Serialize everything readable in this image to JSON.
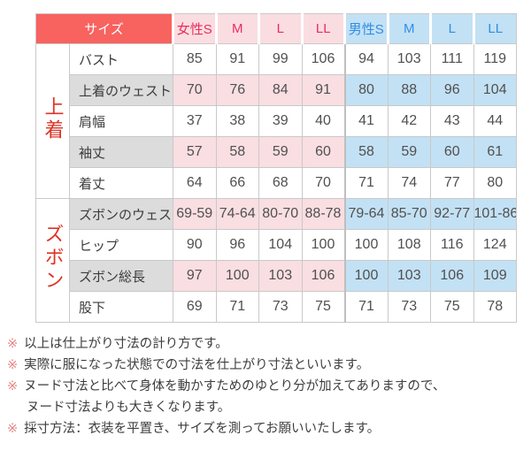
{
  "colors": {
    "header_red_bg": "#f8625f",
    "header_red_text": "#ffffff",
    "female_header_bg": "#fadde1",
    "female_text": "#ea2d5e",
    "male_header_bg": "#c3e1f4",
    "male_text": "#2e8ee6",
    "shaded_label_bg": "#dcdcdc",
    "shaded_female_bg": "#f9dee2",
    "shaded_male_bg": "#c3e1f4",
    "group_label_text": "#dd3327",
    "border": "#c9c9c9",
    "body_text": "#505050",
    "label_text": "#3c3c3c",
    "footnote_marker": "#e98585",
    "footnote_text": "#3d3d3d"
  },
  "table": {
    "header": {
      "size_label": "サイズ",
      "female": [
        "女性S",
        "M",
        "L",
        "LL"
      ],
      "male": [
        "男性S",
        "M",
        "L",
        "LL"
      ]
    },
    "groups": [
      {
        "id": "tops",
        "label": "上着",
        "rows": [
          {
            "label": "バスト",
            "shaded": false,
            "female": [
              "85",
              "91",
              "99",
              "106"
            ],
            "male": [
              "94",
              "103",
              "111",
              "119"
            ]
          },
          {
            "label": "上着のウェスト",
            "shaded": true,
            "female": [
              "70",
              "76",
              "84",
              "91"
            ],
            "male": [
              "80",
              "88",
              "96",
              "104"
            ]
          },
          {
            "label": "肩幅",
            "shaded": false,
            "female": [
              "37",
              "38",
              "39",
              "40"
            ],
            "male": [
              "41",
              "42",
              "43",
              "44"
            ]
          },
          {
            "label": "袖丈",
            "shaded": true,
            "female": [
              "57",
              "58",
              "59",
              "60"
            ],
            "male": [
              "58",
              "59",
              "60",
              "61"
            ]
          },
          {
            "label": "着丈",
            "shaded": false,
            "female": [
              "64",
              "66",
              "68",
              "70"
            ],
            "male": [
              "71",
              "74",
              "77",
              "80"
            ]
          }
        ]
      },
      {
        "id": "pants",
        "label": "ズボン",
        "rows": [
          {
            "label": "ズボンのウェスト",
            "shaded": true,
            "female": [
              "69-59",
              "74-64",
              "80-70",
              "88-78"
            ],
            "male": [
              "79-64",
              "85-70",
              "92-77",
              "101-86"
            ]
          },
          {
            "label": "ヒップ",
            "shaded": false,
            "female": [
              "90",
              "96",
              "104",
              "100"
            ],
            "male": [
              "100",
              "108",
              "116",
              "124"
            ]
          },
          {
            "label": "ズボン総長",
            "shaded": true,
            "female": [
              "97",
              "100",
              "103",
              "106"
            ],
            "male": [
              "100",
              "103",
              "106",
              "109"
            ]
          },
          {
            "label": "股下",
            "shaded": false,
            "female": [
              "69",
              "71",
              "73",
              "75"
            ],
            "male": [
              "71",
              "73",
              "75",
              "78"
            ]
          }
        ]
      }
    ]
  },
  "footnote_marker_char": "※",
  "footnotes": [
    {
      "marker": true,
      "text": "以上は仕上がり寸法の計り方です。"
    },
    {
      "marker": true,
      "text": "実際に服になった状態での寸法を仕上がり寸法といいます。"
    },
    {
      "marker": true,
      "text": "ヌード寸法と比べて身体を動かすためのゆとり分が加えてありますので、"
    },
    {
      "marker": false,
      "text": "ヌード寸法よりも大きくなります。"
    },
    {
      "marker": true,
      "text": "採寸方法：衣装を平置き、サイズを測ってお願いいたします。"
    }
  ]
}
